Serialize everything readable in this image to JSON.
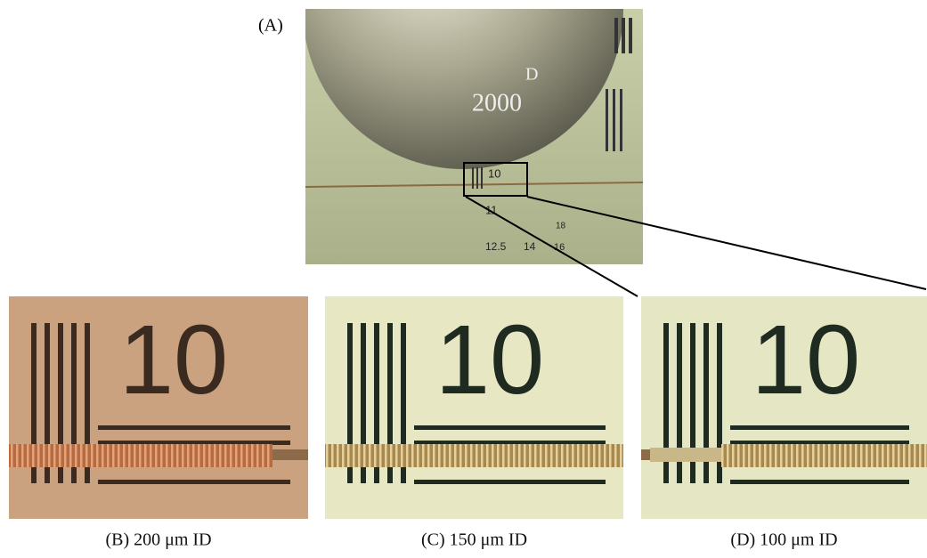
{
  "panel_a": {
    "label": "(A)",
    "coin_texts": [
      "D",
      "2000"
    ],
    "target_texts": [
      "10",
      "11",
      "12.5",
      "14",
      "16",
      "18"
    ]
  },
  "panels": [
    {
      "caption": "(B) 200 μm ID",
      "target_text": "10"
    },
    {
      "caption": "(C) 150 μm ID",
      "target_text": "10"
    },
    {
      "caption": "(D) 100 μm ID",
      "target_text": "10"
    }
  ]
}
